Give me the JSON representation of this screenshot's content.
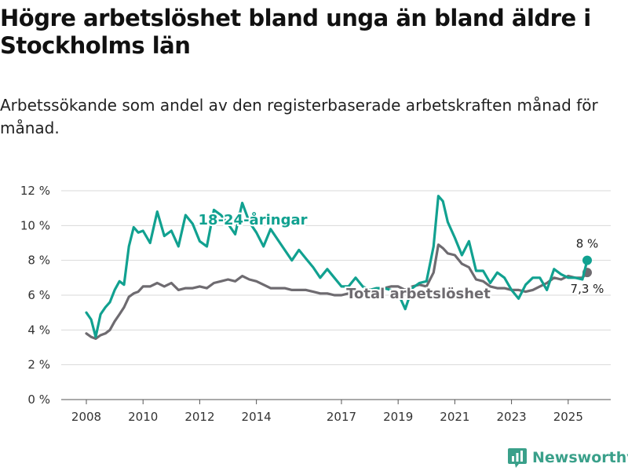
{
  "title": "Högre arbetslöshet bland unga än bland äldre i Stockholms län",
  "subtitle": "Arbetssökande som andel av den registerbaserade arbetskraften månad för månad.",
  "brand": {
    "name": "Newsworthy",
    "icon": "newsworthy-logo-icon"
  },
  "colors": {
    "young": "#11a190",
    "total": "#6e6b70",
    "grid": "#d9d9d9",
    "axis": "#555555"
  },
  "chart_data": {
    "type": "line",
    "title": "Högre arbetslöshet bland unga än bland äldre i Stockholms län",
    "subtitle": "Arbetssökande som andel av den registerbaserade arbetskraften månad för månad.",
    "xlabel": "",
    "ylabel": "",
    "xlim": [
      2008,
      2026
    ],
    "ylim": [
      0,
      12
    ],
    "grid": true,
    "legend": "inline labels on lines",
    "x_ticks": [
      "2008",
      "2010",
      "2012",
      "2014",
      "2017",
      "2019",
      "2021",
      "2023",
      "2025"
    ],
    "y_ticks": [
      "0 %",
      "2 %",
      "4 %",
      "6 %",
      "8 %",
      "10 %",
      "12 %"
    ],
    "series": [
      {
        "name": "18-24-åringar",
        "key": "young",
        "end_label": "8 %",
        "x": [
          2008.0,
          2008.17,
          2008.33,
          2008.5,
          2008.67,
          2008.83,
          2009.0,
          2009.17,
          2009.33,
          2009.5,
          2009.67,
          2009.83,
          2010.0,
          2010.25,
          2010.5,
          2010.75,
          2011.0,
          2011.25,
          2011.5,
          2011.75,
          2012.0,
          2012.25,
          2012.5,
          2012.75,
          2013.0,
          2013.25,
          2013.5,
          2013.75,
          2014.0,
          2014.25,
          2014.5,
          2014.75,
          2015.0,
          2015.25,
          2015.5,
          2015.75,
          2016.0,
          2016.25,
          2016.5,
          2016.75,
          2017.0,
          2017.25,
          2017.5,
          2017.75,
          2018.0,
          2018.25,
          2018.5,
          2018.75,
          2019.0,
          2019.25,
          2019.5,
          2019.75,
          2020.0,
          2020.25,
          2020.42,
          2020.58,
          2020.75,
          2021.0,
          2021.25,
          2021.5,
          2021.75,
          2022.0,
          2022.25,
          2022.5,
          2022.75,
          2023.0,
          2023.25,
          2023.5,
          2023.75,
          2024.0,
          2024.25,
          2024.5,
          2024.75,
          2025.0,
          2025.25,
          2025.5,
          2025.67
        ],
        "y": [
          5.0,
          4.6,
          3.6,
          4.9,
          5.3,
          5.6,
          6.3,
          6.8,
          6.6,
          8.8,
          9.9,
          9.6,
          9.7,
          9.0,
          10.8,
          9.4,
          9.7,
          8.8,
          10.6,
          10.1,
          9.1,
          8.8,
          10.9,
          10.6,
          10.1,
          9.5,
          11.3,
          10.2,
          9.6,
          8.8,
          9.8,
          9.2,
          8.6,
          8.0,
          8.6,
          8.1,
          7.6,
          7.0,
          7.5,
          7.0,
          6.5,
          6.5,
          7.0,
          6.5,
          6.3,
          6.4,
          6.4,
          6.3,
          6.1,
          5.2,
          6.4,
          6.7,
          6.8,
          8.8,
          11.7,
          11.4,
          10.2,
          9.3,
          8.3,
          9.1,
          7.4,
          7.4,
          6.7,
          7.3,
          7.0,
          6.3,
          5.8,
          6.6,
          7.0,
          7.0,
          6.3,
          7.5,
          7.2,
          7.0,
          7.0,
          6.9,
          8.0
        ]
      },
      {
        "name": "Total arbetslöshet",
        "key": "total",
        "end_label": "7,3 %",
        "x": [
          2008.0,
          2008.17,
          2008.33,
          2008.5,
          2008.67,
          2008.83,
          2009.0,
          2009.17,
          2009.33,
          2009.5,
          2009.67,
          2009.83,
          2010.0,
          2010.25,
          2010.5,
          2010.75,
          2011.0,
          2011.25,
          2011.5,
          2011.75,
          2012.0,
          2012.25,
          2012.5,
          2012.75,
          2013.0,
          2013.25,
          2013.5,
          2013.75,
          2014.0,
          2014.25,
          2014.5,
          2014.75,
          2015.0,
          2015.25,
          2015.5,
          2015.75,
          2016.0,
          2016.25,
          2016.5,
          2016.75,
          2017.0,
          2017.25,
          2017.5,
          2017.75,
          2018.0,
          2018.25,
          2018.5,
          2018.75,
          2019.0,
          2019.25,
          2019.5,
          2019.75,
          2020.0,
          2020.25,
          2020.42,
          2020.58,
          2020.75,
          2021.0,
          2021.25,
          2021.5,
          2021.75,
          2022.0,
          2022.25,
          2022.5,
          2022.75,
          2023.0,
          2023.25,
          2023.5,
          2023.75,
          2024.0,
          2024.25,
          2024.5,
          2024.75,
          2025.0,
          2025.25,
          2025.5,
          2025.67
        ],
        "y": [
          3.8,
          3.6,
          3.5,
          3.7,
          3.8,
          4.0,
          4.5,
          4.9,
          5.3,
          5.9,
          6.1,
          6.2,
          6.5,
          6.5,
          6.7,
          6.5,
          6.7,
          6.3,
          6.4,
          6.4,
          6.5,
          6.4,
          6.7,
          6.8,
          6.9,
          6.8,
          7.1,
          6.9,
          6.8,
          6.6,
          6.4,
          6.4,
          6.4,
          6.3,
          6.3,
          6.3,
          6.2,
          6.1,
          6.1,
          6.0,
          6.0,
          6.1,
          6.3,
          6.2,
          6.3,
          6.4,
          6.4,
          6.5,
          6.5,
          6.3,
          6.5,
          6.6,
          6.5,
          7.3,
          8.9,
          8.7,
          8.4,
          8.3,
          7.8,
          7.6,
          6.9,
          6.8,
          6.5,
          6.4,
          6.4,
          6.3,
          6.3,
          6.2,
          6.3,
          6.5,
          6.7,
          7.0,
          6.9,
          7.1,
          7.0,
          7.0,
          7.3
        ]
      }
    ]
  }
}
